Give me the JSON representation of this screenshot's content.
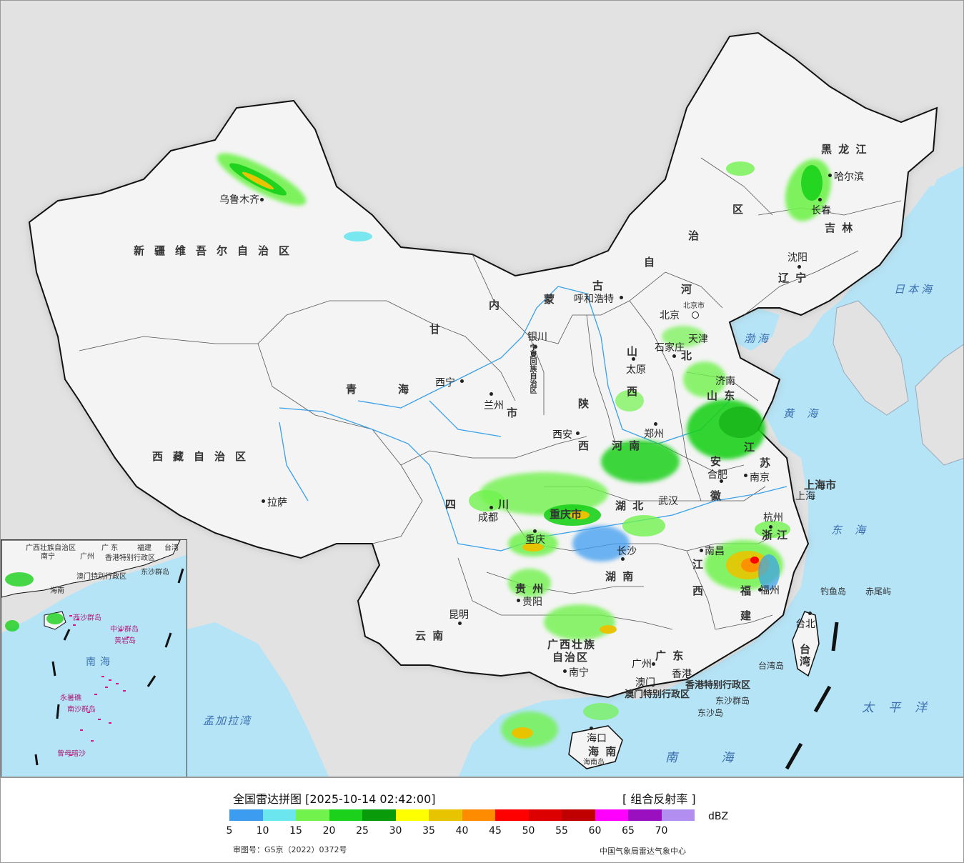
{
  "colors": {
    "sea": "#b5e4f7",
    "land": "#f3f3f3",
    "foreign_land": "#e2e2e2",
    "border": "#222222",
    "river": "#3aa0e8"
  },
  "cities": [
    {
      "id": "urumqi",
      "name": "乌鲁木齐"
    },
    {
      "id": "lhasa",
      "name": "拉萨"
    },
    {
      "id": "xining",
      "name": "西宁"
    },
    {
      "id": "lanzhou",
      "name": "兰州"
    },
    {
      "id": "yinchuan",
      "name": "银川"
    },
    {
      "id": "huhehaote",
      "name": "呼和浩特"
    },
    {
      "id": "beijing",
      "name": "北京"
    },
    {
      "id": "beijing_city",
      "name": "北京市"
    },
    {
      "id": "tianjin",
      "name": "天津"
    },
    {
      "id": "shijiazhuang",
      "name": "石家庄"
    },
    {
      "id": "taiyuan",
      "name": "太原"
    },
    {
      "id": "jinan",
      "name": "济南"
    },
    {
      "id": "zhengzhou",
      "name": "郑州"
    },
    {
      "id": "xian",
      "name": "西安"
    },
    {
      "id": "chengdu",
      "name": "成都"
    },
    {
      "id": "chongqing",
      "name": "重庆"
    },
    {
      "id": "wuhan",
      "name": "武汉"
    },
    {
      "id": "hefei",
      "name": "合肥"
    },
    {
      "id": "nanjing",
      "name": "南京"
    },
    {
      "id": "shanghai",
      "name": "上海"
    },
    {
      "id": "hangzhou",
      "name": "杭州"
    },
    {
      "id": "nanchang",
      "name": "南昌"
    },
    {
      "id": "changsha",
      "name": "长沙"
    },
    {
      "id": "guiyang",
      "name": "贵阳"
    },
    {
      "id": "kunming",
      "name": "昆明"
    },
    {
      "id": "nanning",
      "name": "南宁"
    },
    {
      "id": "guangzhou",
      "name": "广州"
    },
    {
      "id": "xianggang",
      "name": "香港"
    },
    {
      "id": "aomen",
      "name": "澳门"
    },
    {
      "id": "fuzhou",
      "name": "福州"
    },
    {
      "id": "taibei",
      "name": "台北"
    },
    {
      "id": "haikou",
      "name": "海口"
    },
    {
      "id": "shenyang",
      "name": "沈阳"
    },
    {
      "id": "changchun",
      "name": "长春"
    },
    {
      "id": "haerbin",
      "name": "哈尔滨"
    }
  ],
  "provinces": [
    {
      "id": "xinjiang",
      "name": "新疆维吾尔自治区"
    },
    {
      "id": "xizang",
      "name": "西藏自治区"
    },
    {
      "id": "qinghai_1",
      "name": "青"
    },
    {
      "id": "qinghai_2",
      "name": "海"
    },
    {
      "id": "gansu",
      "name": "甘"
    },
    {
      "id": "sichuan_1",
      "name": "四"
    },
    {
      "id": "sichuan_2",
      "name": "川"
    },
    {
      "id": "yunnan",
      "name": "云   南"
    },
    {
      "id": "neimeng_1",
      "name": "内"
    },
    {
      "id": "neimeng_2",
      "name": "蒙"
    },
    {
      "id": "neimeng_3",
      "name": "古"
    },
    {
      "id": "neimeng_4",
      "name": "自"
    },
    {
      "id": "neimeng_5",
      "name": "治"
    },
    {
      "id": "neimeng_6",
      "name": "区"
    },
    {
      "id": "heilongjiang",
      "name": "黑 龙 江"
    },
    {
      "id": "jilin",
      "name": "吉  林"
    },
    {
      "id": "liaoning",
      "name": "辽  宁"
    },
    {
      "id": "hebei_1",
      "name": "河"
    },
    {
      "id": "hebei_2",
      "name": "北"
    },
    {
      "id": "shanxi_1",
      "name": "山"
    },
    {
      "id": "shanxi_2",
      "name": "西"
    },
    {
      "id": "shaanxi_1",
      "name": "陕"
    },
    {
      "id": "shaanxi_2",
      "name": "西"
    },
    {
      "id": "ningxia",
      "name": "宁夏回族自治区"
    },
    {
      "id": "gansu_shi",
      "name": "市"
    },
    {
      "id": "shandong",
      "name": "山  东"
    },
    {
      "id": "henan",
      "name": "河   南"
    },
    {
      "id": "jiangsu_1",
      "name": "江"
    },
    {
      "id": "jiangsu_2",
      "name": "苏"
    },
    {
      "id": "anhui_1",
      "name": "安"
    },
    {
      "id": "anhui_2",
      "name": "徽"
    },
    {
      "id": "shanghai_shi",
      "name": "上海市"
    },
    {
      "id": "zhejiang",
      "name": "浙江"
    },
    {
      "id": "hubei",
      "name": "湖   北"
    },
    {
      "id": "chongqing_shi",
      "name": "重庆市"
    },
    {
      "id": "hunan",
      "name": "湖   南"
    },
    {
      "id": "jiangxi_1",
      "name": "江"
    },
    {
      "id": "jiangxi_2",
      "name": "西"
    },
    {
      "id": "fujian_1",
      "name": "福"
    },
    {
      "id": "fujian_2",
      "name": "建"
    },
    {
      "id": "guizhou",
      "name": "贵   州"
    },
    {
      "id": "guangxi_1",
      "name": "广西壮族"
    },
    {
      "id": "guangxi_2",
      "name": "自治区"
    },
    {
      "id": "guangdong",
      "name": "广   东"
    },
    {
      "id": "taiwan",
      "name": "台湾"
    },
    {
      "id": "hainan",
      "name": "海   南"
    },
    {
      "id": "xianggang_sar",
      "name": "香港特别行政区"
    },
    {
      "id": "aomen_sar",
      "name": "澳门特别行政区"
    }
  ],
  "seas": [
    {
      "id": "ribenhai",
      "name": "日本海"
    },
    {
      "id": "bohai",
      "name": "渤海"
    },
    {
      "id": "huanghai",
      "name": "黄海"
    },
    {
      "id": "donghai",
      "name": "东海"
    },
    {
      "id": "taipingyang",
      "name": "太平洋"
    },
    {
      "id": "nanhai",
      "name": "南 海"
    },
    {
      "id": "mengjialawan",
      "name": "孟加拉湾"
    }
  ],
  "islands": [
    {
      "id": "diaoyudao",
      "name": "钓鱼岛"
    },
    {
      "id": "chiweiyu",
      "name": "赤尾屿"
    },
    {
      "id": "taiwandao",
      "name": "台湾岛"
    },
    {
      "id": "dongsha_qundao",
      "name": "东沙群岛"
    },
    {
      "id": "dongshadao",
      "name": "东沙岛"
    },
    {
      "id": "hainandao",
      "name": "海南岛"
    }
  ],
  "inset": {
    "labels": [
      {
        "id": "guangxi",
        "name": "广西壮族自治区"
      },
      {
        "id": "guangdong",
        "name": "广  东"
      },
      {
        "id": "fujian",
        "name": "福建"
      },
      {
        "id": "taiwan",
        "name": "台湾"
      },
      {
        "id": "nanning",
        "name": "南宁"
      },
      {
        "id": "guangzhou",
        "name": "广州"
      },
      {
        "id": "xianggang",
        "name": "香港特别行政区"
      },
      {
        "id": "aomen",
        "name": "澳门特别行政区"
      },
      {
        "id": "dongsha",
        "name": "东沙群岛"
      },
      {
        "id": "hainan",
        "name": "海南"
      },
      {
        "id": "xisha",
        "name": "西沙群岛"
      },
      {
        "id": "zhongsha",
        "name": "中沙群岛"
      },
      {
        "id": "huangyandao",
        "name": "黄岩岛"
      },
      {
        "id": "yongshujiao",
        "name": "永暑礁"
      },
      {
        "id": "nansha",
        "name": "南沙群岛"
      },
      {
        "id": "zengmuansha",
        "name": "曾母暗沙"
      },
      {
        "id": "nanhai",
        "name": "南海"
      }
    ]
  },
  "legend": {
    "title": "全国雷达拼图 [2025-10-14 02:42:00]",
    "product": "[ 组合反射率 ]",
    "unit": "dBZ",
    "ticks": [
      "5",
      "10",
      "15",
      "20",
      "25",
      "30",
      "35",
      "40",
      "45",
      "50",
      "55",
      "60",
      "65",
      "70"
    ],
    "colors": [
      "#3c9df0",
      "#6be6ee",
      "#71f24d",
      "#1bd11b",
      "#0a9b0a",
      "#ffff00",
      "#e8c400",
      "#ff8c00",
      "#ff0000",
      "#dd0000",
      "#c00000",
      "#ff00ff",
      "#9a10c0",
      "#b28ef0"
    ],
    "approval_no": "审图号：GS京（2022）0372号",
    "issuer": "中国气象局雷达气象中心"
  }
}
